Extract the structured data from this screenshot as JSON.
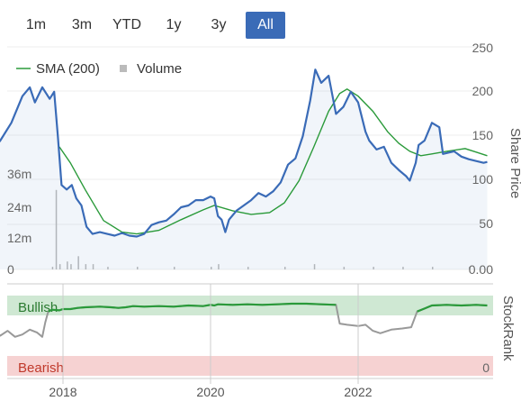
{
  "range_buttons": [
    {
      "label": "1m",
      "active": false
    },
    {
      "label": "3m",
      "active": false
    },
    {
      "label": "YTD",
      "active": false
    },
    {
      "label": "1y",
      "active": false
    },
    {
      "label": "3y",
      "active": false
    },
    {
      "label": "All",
      "active": true
    }
  ],
  "legend": {
    "sma_label": "SMA (200)",
    "volume_label": "Volume"
  },
  "colors": {
    "price": "#3a6bb7",
    "sma": "#2a9a3a",
    "volume": "#bbbbbb",
    "bullish_band": "#cfe8d3",
    "bearish_band": "#f6d2d2",
    "active_button": "#3a6bb7"
  },
  "stockrank_panel": {
    "title": "StockRank",
    "bullish_label": "Bullish",
    "bearish_label": "Bearish",
    "zero_label": "0"
  },
  "chart_data": {
    "type": "line",
    "x_ticks": [
      "2018",
      "2020",
      "2022"
    ],
    "price_axis": {
      "title": "Share Price",
      "ticks": [
        "250",
        "200",
        "150",
        "100",
        "50",
        "0.00"
      ],
      "ylim": [
        0,
        250
      ]
    },
    "volume_axis": {
      "ticks": [
        "36m",
        "24m",
        "12m",
        "0"
      ],
      "ylim": [
        0,
        48
      ]
    },
    "series": [
      {
        "name": "Share Price",
        "points": [
          [
            2017.0,
            130
          ],
          [
            2017.15,
            145
          ],
          [
            2017.3,
            165
          ],
          [
            2017.45,
            195
          ],
          [
            2017.55,
            205
          ],
          [
            2017.62,
            188
          ],
          [
            2017.72,
            205
          ],
          [
            2017.82,
            192
          ],
          [
            2017.88,
            200
          ],
          [
            2017.93,
            150
          ],
          [
            2017.98,
            95
          ],
          [
            2018.05,
            90
          ],
          [
            2018.12,
            95
          ],
          [
            2018.18,
            80
          ],
          [
            2018.25,
            72
          ],
          [
            2018.32,
            48
          ],
          [
            2018.4,
            40
          ],
          [
            2018.5,
            42
          ],
          [
            2018.6,
            40
          ],
          [
            2018.7,
            38
          ],
          [
            2018.8,
            41
          ],
          [
            2018.9,
            38
          ],
          [
            2019.0,
            37
          ],
          [
            2019.1,
            40
          ],
          [
            2019.2,
            50
          ],
          [
            2019.3,
            53
          ],
          [
            2019.4,
            55
          ],
          [
            2019.5,
            62
          ],
          [
            2019.6,
            70
          ],
          [
            2019.7,
            72
          ],
          [
            2019.8,
            78
          ],
          [
            2019.9,
            78
          ],
          [
            2020.0,
            82
          ],
          [
            2020.05,
            80
          ],
          [
            2020.1,
            60
          ],
          [
            2020.15,
            56
          ],
          [
            2020.2,
            42
          ],
          [
            2020.25,
            56
          ],
          [
            2020.35,
            66
          ],
          [
            2020.45,
            72
          ],
          [
            2020.55,
            78
          ],
          [
            2020.65,
            86
          ],
          [
            2020.75,
            82
          ],
          [
            2020.85,
            88
          ],
          [
            2020.95,
            98
          ],
          [
            2021.05,
            118
          ],
          [
            2021.15,
            125
          ],
          [
            2021.25,
            150
          ],
          [
            2021.35,
            190
          ],
          [
            2021.42,
            225
          ],
          [
            2021.5,
            210
          ],
          [
            2021.6,
            218
          ],
          [
            2021.7,
            175
          ],
          [
            2021.8,
            183
          ],
          [
            2021.9,
            200
          ],
          [
            2022.0,
            188
          ],
          [
            2022.1,
            155
          ],
          [
            2022.15,
            145
          ],
          [
            2022.25,
            135
          ],
          [
            2022.35,
            138
          ],
          [
            2022.45,
            120
          ],
          [
            2022.55,
            112
          ],
          [
            2022.65,
            105
          ],
          [
            2022.7,
            100
          ],
          [
            2022.78,
            120
          ],
          [
            2022.82,
            140
          ],
          [
            2022.9,
            145
          ],
          [
            2023.0,
            165
          ],
          [
            2023.1,
            160
          ],
          [
            2023.15,
            130
          ],
          [
            2023.3,
            133
          ],
          [
            2023.4,
            127
          ],
          [
            2023.5,
            124
          ],
          [
            2023.6,
            122
          ],
          [
            2023.7,
            120
          ],
          [
            2023.75,
            121
          ]
        ]
      },
      {
        "name": "SMA (200)",
        "points": [
          [
            2017.95,
            138
          ],
          [
            2018.1,
            120
          ],
          [
            2018.3,
            90
          ],
          [
            2018.55,
            55
          ],
          [
            2018.8,
            42
          ],
          [
            2019.0,
            40
          ],
          [
            2019.3,
            44
          ],
          [
            2019.6,
            56
          ],
          [
            2019.9,
            67
          ],
          [
            2020.05,
            72
          ],
          [
            2020.3,
            66
          ],
          [
            2020.55,
            62
          ],
          [
            2020.8,
            64
          ],
          [
            2021.0,
            75
          ],
          [
            2021.2,
            100
          ],
          [
            2021.4,
            138
          ],
          [
            2021.6,
            178
          ],
          [
            2021.75,
            198
          ],
          [
            2021.85,
            203
          ],
          [
            2022.0,
            195
          ],
          [
            2022.2,
            178
          ],
          [
            2022.4,
            155
          ],
          [
            2022.55,
            142
          ],
          [
            2022.7,
            133
          ],
          [
            2022.85,
            128
          ],
          [
            2023.0,
            130
          ],
          [
            2023.2,
            133
          ],
          [
            2023.45,
            136
          ],
          [
            2023.6,
            132
          ],
          [
            2023.75,
            128
          ]
        ]
      },
      {
        "name": "Volume",
        "points": [
          [
            2017.85,
            1
          ],
          [
            2017.9,
            30
          ],
          [
            2017.95,
            2
          ],
          [
            2018.05,
            3
          ],
          [
            2018.1,
            2
          ],
          [
            2018.2,
            5
          ],
          [
            2018.3,
            2
          ],
          [
            2018.4,
            2
          ],
          [
            2018.6,
            1
          ],
          [
            2019.0,
            1
          ],
          [
            2019.5,
            1
          ],
          [
            2020.0,
            1
          ],
          [
            2020.1,
            2
          ],
          [
            2020.5,
            1
          ],
          [
            2021.0,
            1
          ],
          [
            2021.4,
            2
          ],
          [
            2021.8,
            1
          ],
          [
            2022.2,
            1
          ],
          [
            2022.6,
            1
          ],
          [
            2023.0,
            1
          ],
          [
            2023.5,
            1
          ]
        ]
      },
      {
        "name": "StockRank",
        "points": [
          [
            2016.95,
            60
          ],
          [
            2017.05,
            58
          ],
          [
            2017.15,
            50
          ],
          [
            2017.25,
            58
          ],
          [
            2017.35,
            48
          ],
          [
            2017.45,
            52
          ],
          [
            2017.55,
            60
          ],
          [
            2017.65,
            55
          ],
          [
            2017.72,
            48
          ],
          [
            2017.76,
            72
          ],
          [
            2017.8,
            90
          ],
          [
            2017.85,
            93
          ],
          [
            2017.95,
            92
          ],
          [
            2018.0,
            94
          ],
          [
            2018.1,
            94
          ],
          [
            2018.2,
            96
          ],
          [
            2018.3,
            97
          ],
          [
            2018.5,
            98
          ],
          [
            2018.65,
            97
          ],
          [
            2018.75,
            96
          ],
          [
            2018.85,
            97
          ],
          [
            2018.95,
            99
          ],
          [
            2019.1,
            98
          ],
          [
            2019.3,
            99
          ],
          [
            2019.5,
            98
          ],
          [
            2019.7,
            100
          ],
          [
            2019.9,
            99
          ],
          [
            2020.0,
            101
          ],
          [
            2020.05,
            100
          ],
          [
            2020.1,
            102
          ],
          [
            2020.3,
            101
          ],
          [
            2020.5,
            102
          ],
          [
            2020.7,
            101
          ],
          [
            2020.9,
            102
          ],
          [
            2021.1,
            103
          ],
          [
            2021.3,
            103
          ],
          [
            2021.5,
            102
          ],
          [
            2021.7,
            101
          ],
          [
            2021.75,
            70
          ],
          [
            2021.85,
            68
          ],
          [
            2022.0,
            66
          ],
          [
            2022.1,
            68
          ],
          [
            2022.2,
            58
          ],
          [
            2022.3,
            54
          ],
          [
            2022.45,
            60
          ],
          [
            2022.6,
            62
          ],
          [
            2022.72,
            64
          ],
          [
            2022.8,
            90
          ],
          [
            2022.9,
            95
          ],
          [
            2023.0,
            100
          ],
          [
            2023.2,
            101
          ],
          [
            2023.4,
            100
          ],
          [
            2023.6,
            101
          ],
          [
            2023.75,
            100
          ]
        ]
      }
    ]
  }
}
